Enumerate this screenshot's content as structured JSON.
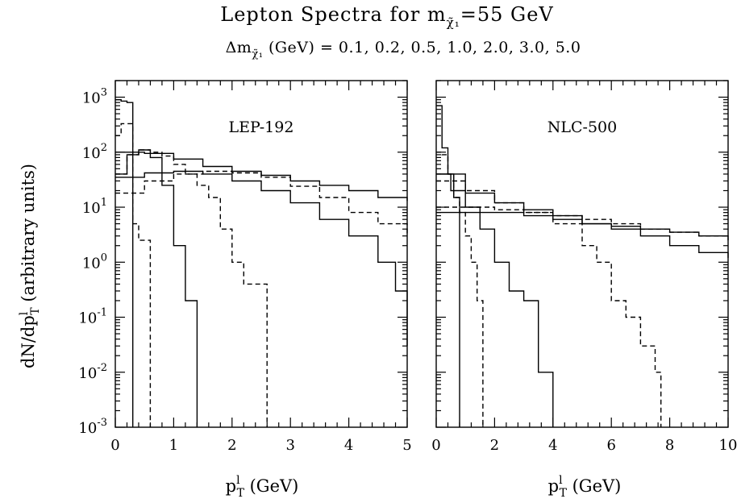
{
  "title": {
    "prefix": "Lepton Spectra for m",
    "sub": "χ̃₁",
    "suffix": "=55 GeV"
  },
  "subtitle": {
    "prefix": "Δm",
    "sub": "χ̃₁",
    "suffix": " (GeV) = 0.1, 0.2, 0.5, 1.0, 2.0, 3.0, 5.0"
  },
  "ylabel": {
    "pre": "dN/dp",
    "sup": "l",
    "sub": "T",
    "post": " (arbitrary units)"
  },
  "xlabel": {
    "base": "p",
    "sup": "l",
    "sub": "T",
    "post": " (GeV)"
  },
  "chart_data": [
    {
      "type": "line",
      "label": "LEP-192",
      "xlim": [
        0,
        5
      ],
      "ylim": [
        0.001,
        2000
      ],
      "yscale": "log",
      "xticks": [
        "0",
        "1",
        "2",
        "3",
        "4",
        "5"
      ],
      "yticks": [
        {
          "base": "10",
          "exp": "-3"
        },
        {
          "base": "10",
          "exp": "-2"
        },
        {
          "base": "10",
          "exp": "-1"
        },
        {
          "base": "10",
          "exp": "0"
        },
        {
          "base": "10",
          "exp": "1"
        },
        {
          "base": "10",
          "exp": "2"
        },
        {
          "base": "10",
          "exp": "3"
        }
      ],
      "ytick_values": [
        0.001,
        0.01,
        0.1,
        1,
        10,
        100,
        1000
      ],
      "series": [
        {
          "style": "solid",
          "x": [
            0,
            0.1,
            0.2,
            0.3
          ],
          "y": [
            900,
            850,
            800,
            0.001
          ]
        },
        {
          "style": "dashed",
          "x": [
            0,
            0.1,
            0.2,
            0.3,
            0.4,
            0.5,
            0.6
          ],
          "y": [
            200,
            330,
            330,
            5,
            2.5,
            2.5,
            0.001
          ]
        },
        {
          "style": "solid",
          "x": [
            0,
            0.2,
            0.4,
            0.6,
            0.8,
            1.0,
            1.2,
            1.4
          ],
          "y": [
            40,
            90,
            110,
            80,
            25,
            2,
            0.2,
            0.001
          ]
        },
        {
          "style": "dashed",
          "x": [
            0,
            0.2,
            0.4,
            0.6,
            0.8,
            1.0,
            1.2,
            1.4,
            1.6,
            1.8,
            2.0,
            2.2,
            2.4,
            2.6
          ],
          "y": [
            40,
            90,
            110,
            100,
            85,
            60,
            40,
            25,
            15,
            4,
            1,
            0.4,
            0.4,
            0.001
          ]
        },
        {
          "style": "solid",
          "x": [
            0,
            0.5,
            1.0,
            1.5,
            2.0,
            2.5,
            3.0,
            3.5,
            4.0,
            4.5,
            4.8,
            5.0
          ],
          "y": [
            35,
            42,
            45,
            40,
            30,
            20,
            12,
            6,
            3,
            1,
            0.3,
            0.03
          ]
        },
        {
          "style": "dashed",
          "x": [
            0,
            0.5,
            1.0,
            1.5,
            2.0,
            2.5,
            3.0,
            3.5,
            4.0,
            4.5,
            5.0
          ],
          "y": [
            18,
            30,
            40,
            45,
            42,
            35,
            24,
            15,
            8,
            5,
            3
          ]
        },
        {
          "style": "solid",
          "x": [
            0,
            0.5,
            1.0,
            1.5,
            2.0,
            2.5,
            3.0,
            3.5,
            4.0,
            4.5,
            5.0
          ],
          "y": [
            100,
            95,
            75,
            55,
            45,
            38,
            30,
            25,
            20,
            15,
            13
          ]
        }
      ]
    },
    {
      "type": "line",
      "label": "NLC-500",
      "xlim": [
        0,
        10
      ],
      "ylim": [
        0.001,
        2000
      ],
      "yscale": "log",
      "xticks": [
        "0",
        "2",
        "4",
        "6",
        "8",
        "10"
      ],
      "series": [
        {
          "style": "solid",
          "x": [
            0,
            0.2,
            0.4,
            0.6,
            0.8
          ],
          "y": [
            700,
            120,
            40,
            15,
            0.001
          ]
        },
        {
          "style": "dashed",
          "x": [
            0,
            0.2,
            0.4,
            0.6,
            0.8,
            1.0,
            1.2,
            1.4,
            1.6
          ],
          "y": [
            100,
            90,
            40,
            15,
            8,
            3,
            1,
            0.2,
            0.001
          ]
        },
        {
          "style": "solid",
          "x": [
            0,
            0.5,
            1.0,
            1.5,
            2.0,
            2.5,
            3.0,
            3.5,
            4.0
          ],
          "y": [
            40,
            20,
            10,
            4,
            1,
            0.3,
            0.2,
            0.01,
            0.001
          ]
        },
        {
          "style": "dashed",
          "x": [
            0,
            1,
            2,
            3,
            4,
            5,
            5.5,
            6,
            6.5,
            7,
            7.5,
            7.7
          ],
          "y": [
            30,
            20,
            12,
            8,
            5,
            2,
            1,
            0.2,
            0.1,
            0.03,
            0.01,
            0.001
          ]
        },
        {
          "style": "solid",
          "x": [
            0,
            1,
            2,
            3,
            4,
            5,
            6,
            7,
            8,
            9,
            10
          ],
          "y": [
            40,
            18,
            12,
            9,
            7,
            5,
            4,
            3,
            2,
            1.5,
            1.2
          ]
        },
        {
          "style": "dashed",
          "x": [
            0,
            1,
            2,
            3,
            4,
            5,
            6,
            7,
            8,
            9,
            10
          ],
          "y": [
            10,
            10,
            9,
            8,
            7,
            6,
            5,
            4,
            3.5,
            3,
            2.5
          ]
        },
        {
          "style": "solid",
          "x": [
            0,
            1,
            2,
            3,
            4,
            5,
            6,
            7,
            8,
            9,
            10
          ],
          "y": [
            8,
            8,
            8,
            7,
            6,
            5,
            4.5,
            4,
            3.5,
            3,
            2.8
          ]
        }
      ]
    }
  ]
}
